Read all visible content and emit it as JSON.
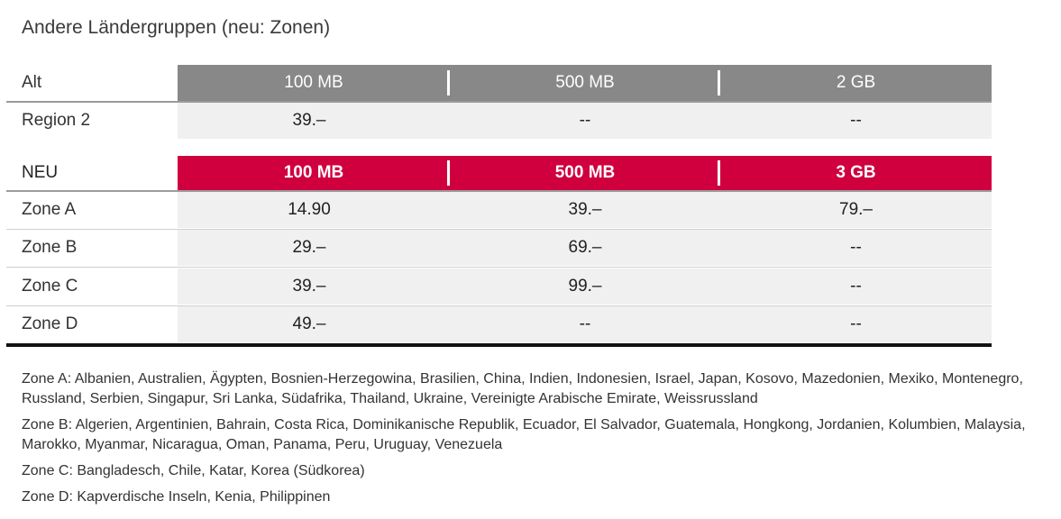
{
  "title": "Andere Ländergruppen (neu: Zonen)",
  "old": {
    "header": {
      "label": "Alt",
      "cols": [
        "100 MB",
        "500 MB",
        "2 GB"
      ]
    },
    "rows": [
      {
        "label": "Region 2",
        "values": [
          "39.–",
          "--",
          "--"
        ]
      }
    ]
  },
  "new": {
    "header": {
      "label": "NEU",
      "cols": [
        "100 MB",
        "500 MB",
        "3 GB"
      ]
    },
    "rows": [
      {
        "label": "Zone A",
        "values": [
          "14.90",
          "39.–",
          "79.–"
        ]
      },
      {
        "label": "Zone B",
        "values": [
          "29.–",
          "69.–",
          "--"
        ]
      },
      {
        "label": "Zone C",
        "values": [
          "39.–",
          "99.–",
          "--"
        ]
      },
      {
        "label": "Zone D",
        "values": [
          "49.–",
          "--",
          "--"
        ]
      }
    ]
  },
  "notes": [
    "Zone A: Albanien, Australien, Ägypten, Bosnien-Herzegowina, Brasilien, China, Indien, Indonesien, Israel, Japan, Kosovo, Mazedonien, Mexiko, Montenegro, Russland, Serbien, Singapur, Sri Lanka, Südafrika, Thailand, Ukraine, Vereinigte Arabische Emirate, Weissrussland",
    "Zone B: Algerien, Argentinien, Bahrain, Costa Rica, Dominikanische Republik, Ecuador, El Salvador, Guatemala, Hongkong, Jordanien, Kolumbien, Malaysia, Marokko, Myanmar, Nicaragua, Oman, Panama, Peru, Uruguay, Venezuela",
    "Zone C: Bangladesch, Chile, Katar, Korea (Südkorea)",
    "Zone D: Kapverdische Inseln, Kenia, Philippinen"
  ],
  "colors": {
    "old_header_bg": "#888888",
    "new_header_bg": "#d0003f",
    "cell_bg": "#f0f0f0"
  }
}
